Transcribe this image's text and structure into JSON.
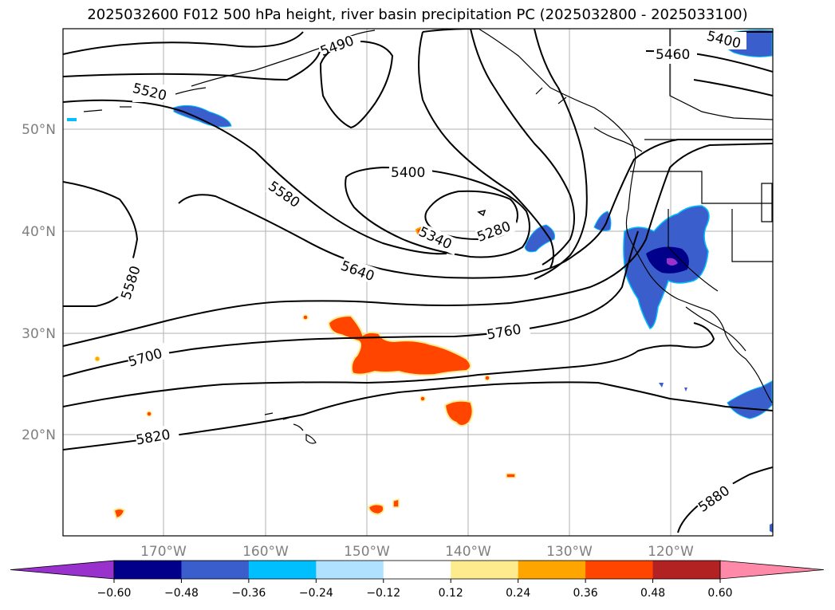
{
  "title": "2025032600 F012 500 hPa height, river basin precipitation PC (2025032800 - 2025033100)",
  "lat_labels": [
    "50°N",
    "40°N",
    "30°N",
    "20°N"
  ],
  "lon_labels": [
    "170°W",
    "160°W",
    "150°W",
    "140°W",
    "130°W",
    "120°W"
  ],
  "contour_labels": [
    "5400",
    "5460",
    "5520",
    "5490",
    "5400",
    "5580",
    "5340",
    "5280",
    "5580",
    "5640",
    "5760",
    "5700",
    "5820",
    "5880"
  ],
  "colorbar": {
    "ticks": [
      "−0.60",
      "−0.48",
      "−0.36",
      "−0.24",
      "−0.12",
      "0.12",
      "0.24",
      "0.36",
      "0.48",
      "0.60"
    ],
    "colors": [
      "#9932cc",
      "#00008b",
      "#3a5fcd",
      "#00bfff",
      "#b0e2ff",
      "#ffffff",
      "#fdeb8e",
      "#ffa500",
      "#ff4500",
      "#b22222",
      "#ff89a9"
    ]
  },
  "colors": {
    "positive_fill": "#ff4500",
    "negative_fill": "#3a5fcd",
    "grid": "#b0b0b0"
  }
}
